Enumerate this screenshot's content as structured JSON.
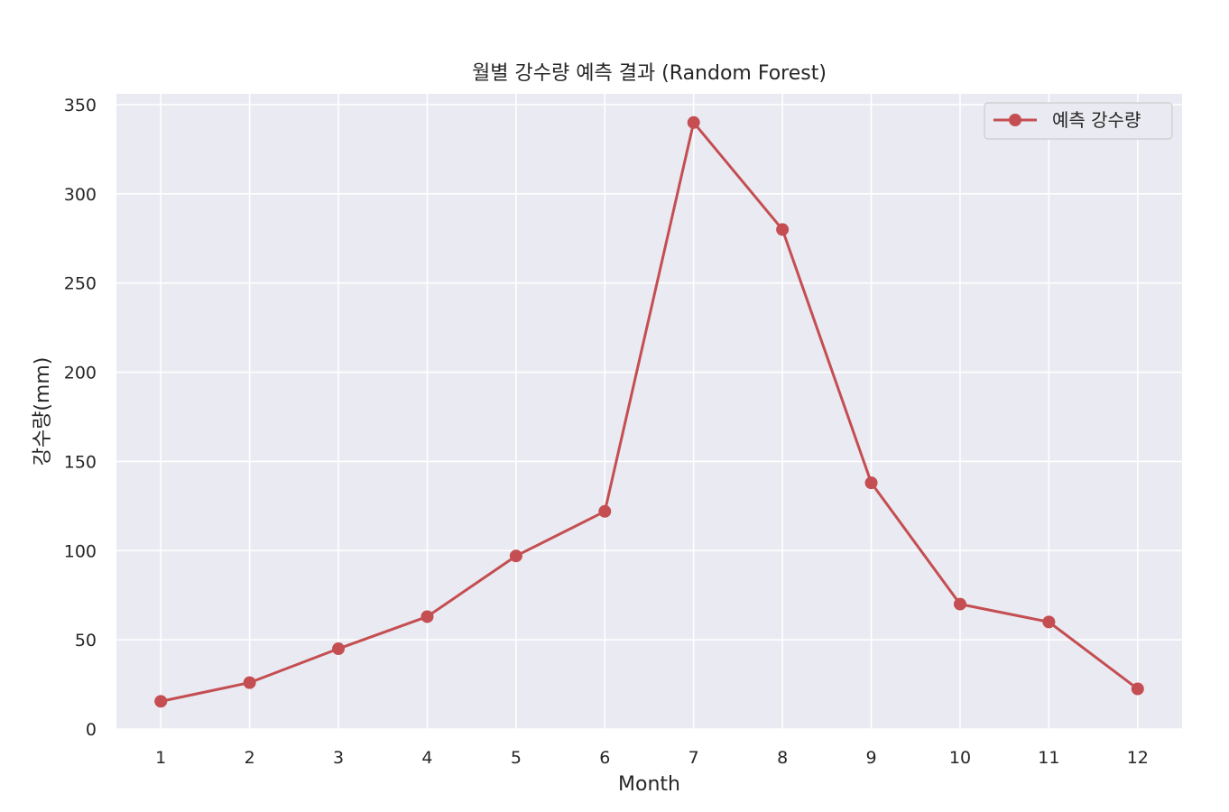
{
  "chart_data": {
    "type": "line",
    "title": "월별 강수량 예측 결과 (Random Forest)",
    "xlabel": "Month",
    "ylabel": "강수량(mm)",
    "x": [
      1,
      2,
      3,
      4,
      5,
      6,
      7,
      8,
      9,
      10,
      11,
      12
    ],
    "x_tick_labels": [
      "1",
      "2",
      "3",
      "4",
      "5",
      "6",
      "7",
      "8",
      "9",
      "10",
      "11",
      "12"
    ],
    "y_ticks": [
      0,
      50,
      100,
      150,
      200,
      250,
      300,
      350
    ],
    "y_tick_labels": [
      "0",
      "50",
      "100",
      "150",
      "200",
      "250",
      "300",
      "350"
    ],
    "xlim": [
      0.5,
      12.5
    ],
    "ylim": [
      0,
      350
    ],
    "grid": true,
    "legend_position": "top-right",
    "series": [
      {
        "name": "예측 강수량",
        "color": "#c44e52",
        "marker": "circle",
        "values": [
          15.5,
          26,
          45,
          63,
          97,
          122,
          340,
          280,
          138,
          70,
          60,
          22.5
        ]
      }
    ]
  },
  "colors": {
    "plot_background": "#eaeaf2",
    "grid": "#ffffff",
    "text": "#262626"
  }
}
